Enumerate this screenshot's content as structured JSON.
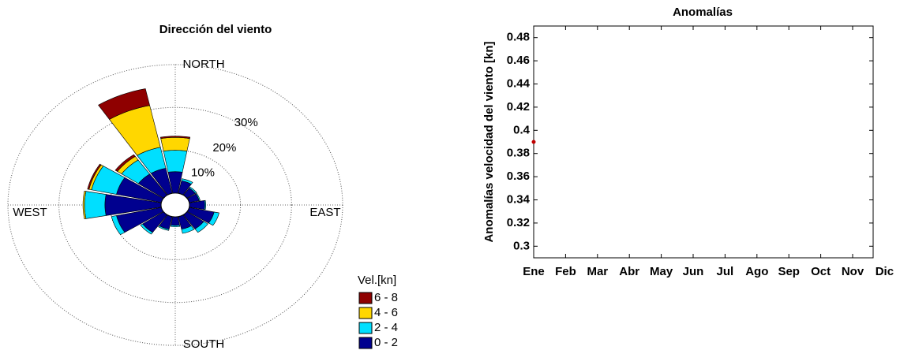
{
  "chart_data": [
    {
      "type": "windrose",
      "title": "Dirección del viento",
      "direction_labels": [
        "NORTH",
        "EAST",
        "SOUTH",
        "WEST"
      ],
      "directions": [
        0,
        22.5,
        45,
        67.5,
        90,
        112.5,
        135,
        157.5,
        180,
        202.5,
        225,
        247.5,
        270,
        292.5,
        315,
        337.5
      ],
      "rlim": [
        0,
        30
      ],
      "rticks": [
        {
          "value": 10,
          "label": "10%"
        },
        {
          "value": 20,
          "label": "20%"
        },
        {
          "value": 30,
          "label": "30%"
        }
      ],
      "legend_title": "Vel.[kn]",
      "series": [
        {
          "name": "0 - 2",
          "color": "#00008f",
          "values": [
            5,
            3,
            2,
            2,
            3,
            5,
            4,
            3,
            2,
            3,
            5,
            9,
            11,
            9,
            6,
            6
          ]
        },
        {
          "name": "2 - 4",
          "color": "#00dfff",
          "values": [
            5,
            0.5,
            0.3,
            0.2,
            0.2,
            1,
            1,
            1,
            0.3,
            0.3,
            0.5,
            1,
            4,
            5,
            4,
            5
          ]
        },
        {
          "name": "4 - 6",
          "color": "#ffd700",
          "values": [
            3,
            0,
            0,
            0,
            0,
            0,
            0,
            0,
            0,
            0,
            0,
            0,
            0.3,
            0.5,
            1,
            10
          ]
        },
        {
          "name": "6 - 8",
          "color": "#8f0000",
          "values": [
            0.3,
            0,
            0,
            0,
            0,
            0,
            0,
            0,
            0,
            0,
            0,
            0,
            0,
            0.3,
            0.5,
            4
          ]
        }
      ]
    },
    {
      "type": "scatter",
      "title": "Anomalías",
      "y_label": "Anomalías velocidad del viento [kn]",
      "categories": [
        "Ene",
        "Feb",
        "Mar",
        "Abr",
        "May",
        "Jun",
        "Jul",
        "Ago",
        "Sep",
        "Oct",
        "Nov",
        "Dic"
      ],
      "values": [
        0.39,
        null,
        null,
        null,
        null,
        null,
        null,
        null,
        null,
        null,
        null,
        null
      ],
      "color": "#c00000",
      "ylim": [
        0.29,
        0.49
      ],
      "yticks": [
        0.3,
        0.32,
        0.34,
        0.36,
        0.38,
        0.4,
        0.42,
        0.44,
        0.46,
        0.48
      ]
    }
  ]
}
